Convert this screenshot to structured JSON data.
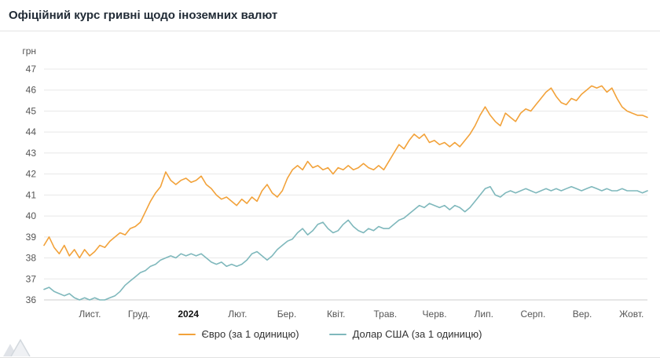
{
  "header": {
    "title": "Офіційний курс гривні щодо іноземних валют"
  },
  "chart_data": {
    "type": "line",
    "title": "Офіційний курс гривні щодо іноземних валют",
    "ylabel": "грн",
    "xlabel": "",
    "ylim": [
      36,
      47
    ],
    "yticks": [
      36,
      37,
      38,
      39,
      40,
      41,
      42,
      43,
      44,
      45,
      46,
      47
    ],
    "x_tick_labels": [
      "Лист.",
      "Груд.",
      "2024",
      "Лют.",
      "Бер.",
      "Квіт.",
      "Трав.",
      "Черв.",
      "Лип.",
      "Серп.",
      "Вер.",
      "Жовт."
    ],
    "emphasized_x_tick": "2024",
    "grid": true,
    "legend_position": "bottom",
    "colors": {
      "grid": "#e8e8e8",
      "axis_line": "#cccccc",
      "tick_label": "#555555",
      "tick_label_emphasis": "#111111",
      "ylabel": "#555555",
      "euro": "#f2a23a",
      "usd": "#7fb8bc"
    },
    "series": [
      {
        "name": "Євро (за 1 одиницю)",
        "color": "#f2a23a",
        "values": [
          38.6,
          39.0,
          38.5,
          38.2,
          38.6,
          38.1,
          38.4,
          38.0,
          38.4,
          38.1,
          38.3,
          38.6,
          38.5,
          38.8,
          39.0,
          39.2,
          39.1,
          39.4,
          39.5,
          39.7,
          40.2,
          40.7,
          41.1,
          41.4,
          42.1,
          41.7,
          41.5,
          41.7,
          41.8,
          41.6,
          41.7,
          41.9,
          41.5,
          41.3,
          41.0,
          40.8,
          40.9,
          40.7,
          40.5,
          40.8,
          40.6,
          40.9,
          40.7,
          41.2,
          41.5,
          41.1,
          40.9,
          41.2,
          41.8,
          42.2,
          42.4,
          42.2,
          42.6,
          42.3,
          42.4,
          42.2,
          42.3,
          42.0,
          42.3,
          42.2,
          42.4,
          42.2,
          42.3,
          42.5,
          42.3,
          42.2,
          42.4,
          42.2,
          42.6,
          43.0,
          43.4,
          43.2,
          43.6,
          43.9,
          43.7,
          43.9,
          43.5,
          43.6,
          43.4,
          43.5,
          43.3,
          43.5,
          43.3,
          43.6,
          43.9,
          44.3,
          44.8,
          45.2,
          44.8,
          44.5,
          44.3,
          44.9,
          44.7,
          44.5,
          44.9,
          45.1,
          45.0,
          45.3,
          45.6,
          45.9,
          46.1,
          45.7,
          45.4,
          45.3,
          45.6,
          45.5,
          45.8,
          46.0,
          46.2,
          46.1,
          46.2,
          45.9,
          46.1,
          45.6,
          45.2,
          45.0,
          44.9,
          44.8,
          44.8,
          44.7
        ]
      },
      {
        "name": "Долар США (за 1 одиницю)",
        "color": "#7fb8bc",
        "values": [
          36.5,
          36.6,
          36.4,
          36.3,
          36.2,
          36.3,
          36.1,
          36.0,
          36.1,
          36.0,
          36.1,
          36.0,
          36.0,
          36.1,
          36.2,
          36.4,
          36.7,
          36.9,
          37.1,
          37.3,
          37.4,
          37.6,
          37.7,
          37.9,
          38.0,
          38.1,
          38.0,
          38.2,
          38.1,
          38.2,
          38.1,
          38.2,
          38.0,
          37.8,
          37.7,
          37.8,
          37.6,
          37.7,
          37.6,
          37.7,
          37.9,
          38.2,
          38.3,
          38.1,
          37.9,
          38.1,
          38.4,
          38.6,
          38.8,
          38.9,
          39.2,
          39.4,
          39.1,
          39.3,
          39.6,
          39.7,
          39.4,
          39.2,
          39.3,
          39.6,
          39.8,
          39.5,
          39.3,
          39.2,
          39.4,
          39.3,
          39.5,
          39.4,
          39.4,
          39.6,
          39.8,
          39.9,
          40.1,
          40.3,
          40.5,
          40.4,
          40.6,
          40.5,
          40.4,
          40.5,
          40.3,
          40.5,
          40.4,
          40.2,
          40.4,
          40.7,
          41.0,
          41.3,
          41.4,
          41.0,
          40.9,
          41.1,
          41.2,
          41.1,
          41.2,
          41.3,
          41.2,
          41.1,
          41.2,
          41.3,
          41.2,
          41.3,
          41.2,
          41.3,
          41.4,
          41.3,
          41.2,
          41.3,
          41.4,
          41.3,
          41.2,
          41.3,
          41.2,
          41.2,
          41.3,
          41.2,
          41.2,
          41.2,
          41.1,
          41.2
        ]
      }
    ]
  }
}
